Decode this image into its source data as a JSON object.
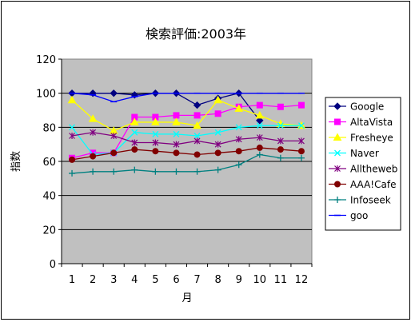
{
  "chart_data": {
    "type": "line",
    "title": "検索評価:2003年",
    "xlabel": "月",
    "ylabel": "指数",
    "categories": [
      "1",
      "2",
      "3",
      "4",
      "5",
      "6",
      "7",
      "8",
      "9",
      "10",
      "11",
      "12"
    ],
    "ylim": [
      0,
      120
    ],
    "yticks": [
      "0",
      "20",
      "40",
      "60",
      "80",
      "100",
      "120"
    ],
    "grid": true,
    "legend_position": "right",
    "plot_background": "#c0c0c0",
    "series": [
      {
        "name": "Google",
        "color": "#000080",
        "marker": "diamond",
        "values": [
          100,
          100,
          100,
          99,
          100,
          100,
          93,
          97,
          100,
          84,
          null,
          null
        ]
      },
      {
        "name": "AltaVista",
        "color": "#ff00ff",
        "marker": "square",
        "values": [
          62,
          65,
          65,
          86,
          86,
          87,
          87,
          88,
          92,
          93,
          92,
          93
        ]
      },
      {
        "name": "Fresheye",
        "color": "#ffff00",
        "marker": "triangle",
        "values": [
          96,
          85,
          78,
          83,
          83,
          83,
          81,
          96,
          91,
          87,
          82,
          81
        ]
      },
      {
        "name": "Naver",
        "color": "#00ffff",
        "marker": "x",
        "values": [
          80,
          64,
          65,
          77,
          76,
          76,
          75,
          77,
          80,
          81,
          81,
          81
        ]
      },
      {
        "name": "Alltheweb",
        "color": "#800080",
        "marker": "star",
        "values": [
          75,
          77,
          75,
          71,
          71,
          70,
          72,
          70,
          73,
          74,
          72,
          72
        ]
      },
      {
        "name": "AAA!Cafe",
        "color": "#800000",
        "marker": "circle",
        "values": [
          61,
          63,
          65,
          67,
          66,
          65,
          64,
          65,
          66,
          68,
          67,
          66
        ]
      },
      {
        "name": "Infoseek",
        "color": "#008080",
        "marker": "plus",
        "values": [
          53,
          54,
          54,
          55,
          54,
          54,
          54,
          55,
          58,
          64,
          62,
          62
        ]
      },
      {
        "name": "goo",
        "color": "#0000ff",
        "marker": "dash",
        "values": [
          100,
          99,
          95,
          98,
          100,
          100,
          100,
          100,
          100,
          100,
          100,
          100
        ]
      }
    ]
  }
}
